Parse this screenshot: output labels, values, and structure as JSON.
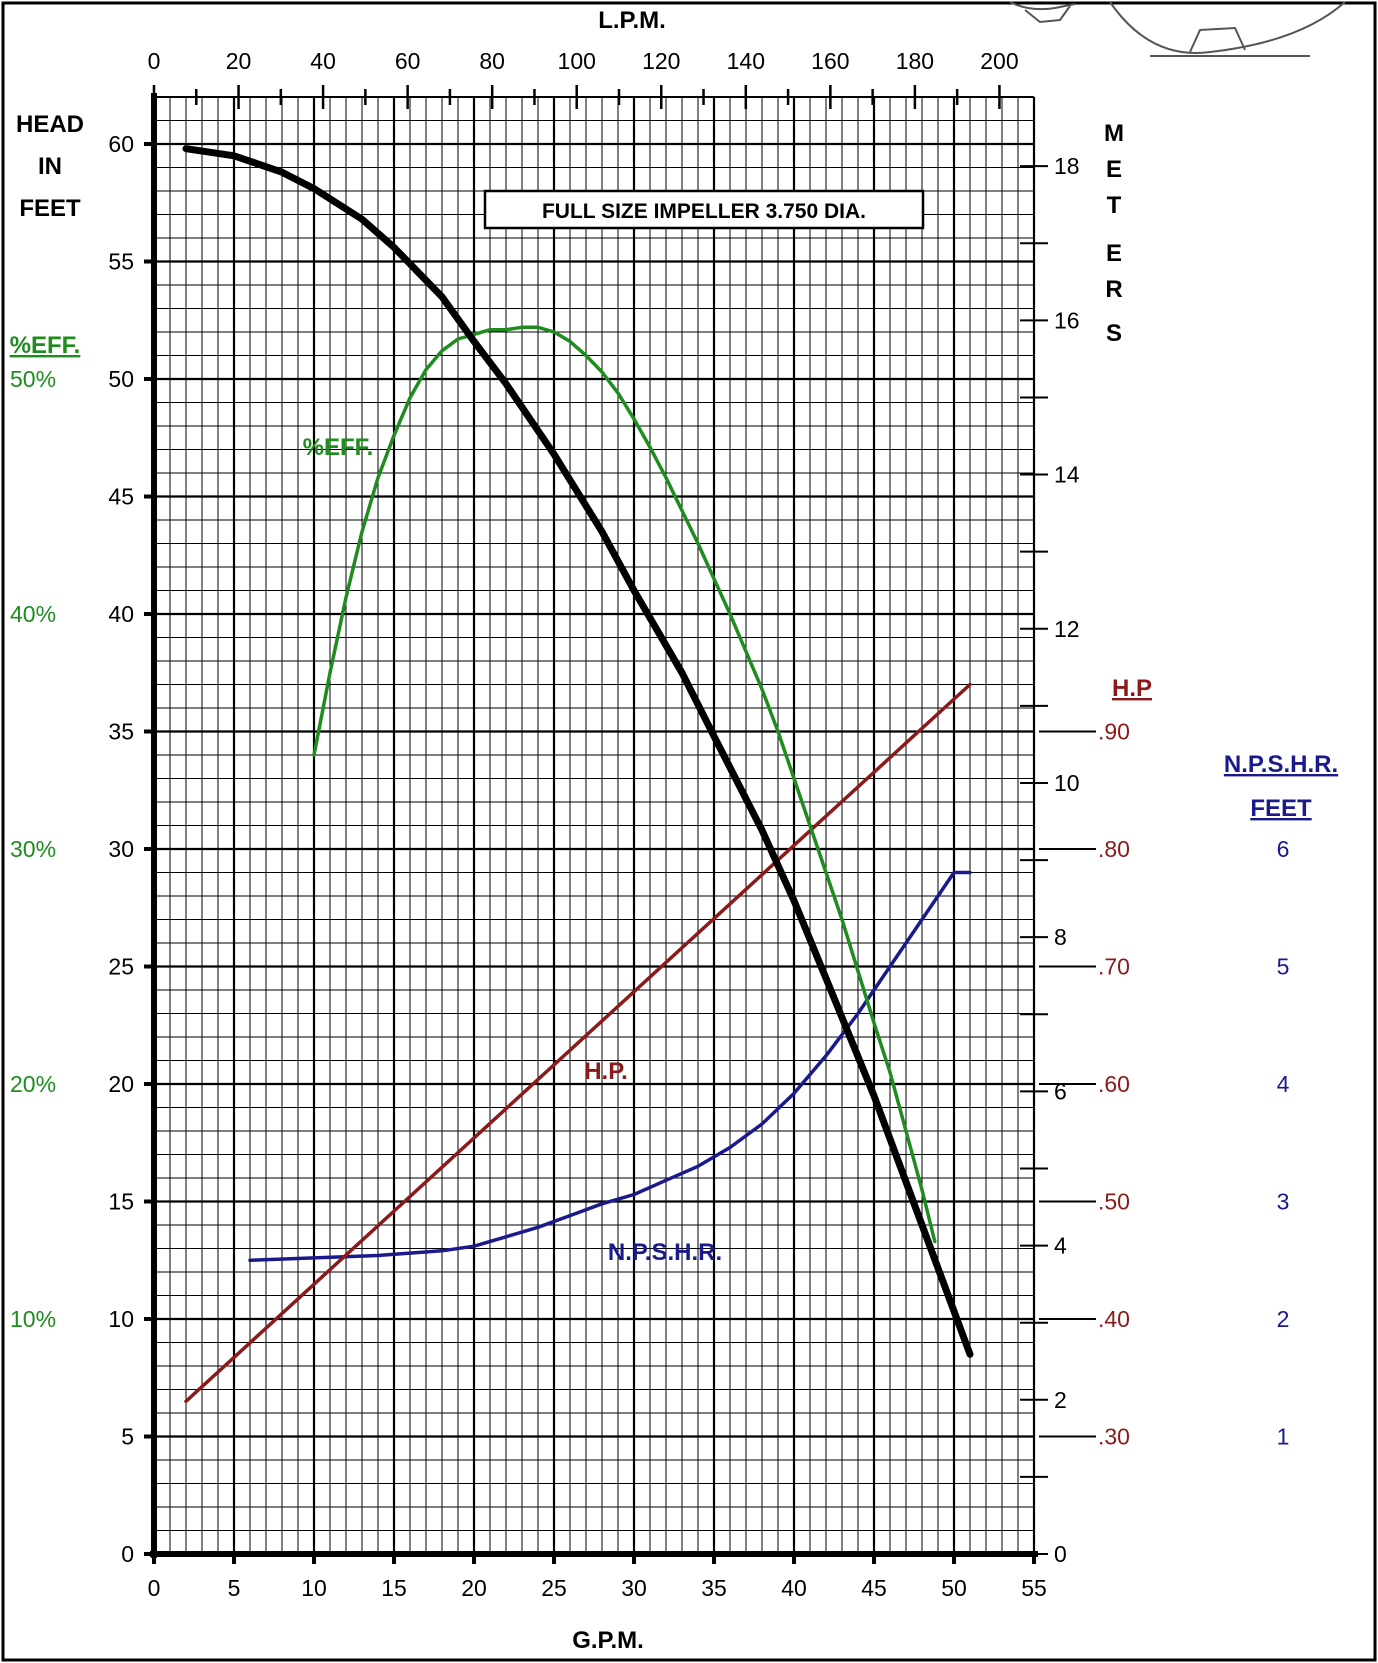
{
  "chart_data": {
    "type": "line",
    "annotation": "FULL SIZE IMPELLER 3.750 DIA.",
    "bottom_axis": {
      "label": "G.P.M.",
      "range": [
        0,
        55
      ],
      "ticks": [
        0,
        5,
        10,
        15,
        20,
        25,
        30,
        35,
        40,
        45,
        50,
        55
      ]
    },
    "top_axis": {
      "label": "L.P.M.",
      "ticks": [
        "0",
        "20",
        "40",
        "60",
        "80",
        "100",
        "120",
        "140",
        "160",
        "180",
        "200"
      ]
    },
    "left_axis": {
      "label_lines": [
        "HEAD",
        "IN",
        "FEET"
      ],
      "range": [
        0,
        62
      ],
      "ticks": [
        0,
        5,
        10,
        15,
        20,
        25,
        30,
        35,
        40,
        45,
        50,
        55,
        60
      ]
    },
    "eff_axis": {
      "title": "%EFF.",
      "ticks": [
        {
          "label": "10%",
          "head": 10
        },
        {
          "label": "20%",
          "head": 20
        },
        {
          "label": "30%",
          "head": 30
        },
        {
          "label": "40%",
          "head": 40
        },
        {
          "label": "50%",
          "head": 50
        }
      ]
    },
    "meters_axis": {
      "title_letters": [
        "M",
        "E",
        "T",
        "E",
        "R",
        "S"
      ],
      "ticks": [
        "0",
        "2",
        "4",
        "6",
        "8",
        "10",
        "12",
        "14",
        "16",
        "18"
      ]
    },
    "hp_axis": {
      "title": "H.P",
      "ticks": [
        {
          "label": ".30",
          "head": 5
        },
        {
          "label": ".40",
          "head": 10
        },
        {
          "label": ".50",
          "head": 15
        },
        {
          "label": ".60",
          "head": 20
        },
        {
          "label": ".70",
          "head": 25
        },
        {
          "label": ".80",
          "head": 30
        },
        {
          "label": ".90",
          "head": 35
        }
      ]
    },
    "npshr_axis": {
      "title_lines": [
        "N.P.S.H.R.",
        "FEET"
      ],
      "ticks": [
        {
          "label": "1",
          "head": 5
        },
        {
          "label": "2",
          "head": 10
        },
        {
          "label": "3",
          "head": 15
        },
        {
          "label": "4",
          "head": 20
        },
        {
          "label": "5",
          "head": 25
        },
        {
          "label": "6",
          "head": 30
        }
      ]
    },
    "series": [
      {
        "key": "head",
        "color": "#000000",
        "x": [
          2,
          5,
          8,
          10,
          13,
          15,
          18,
          20,
          22,
          25,
          28,
          30,
          33,
          35,
          38,
          40,
          42,
          45,
          48,
          51
        ],
        "y": [
          59.8,
          59.5,
          58.8,
          58.1,
          56.8,
          55.6,
          53.5,
          51.6,
          49.8,
          46.8,
          43.5,
          41.0,
          37.5,
          34.8,
          30.8,
          27.8,
          24.5,
          19.5,
          14.0,
          8.5
        ]
      },
      {
        "key": "efficiency",
        "name": "%EFF.",
        "color": "#1e8c1e",
        "x": [
          10,
          11,
          12,
          13,
          14,
          15,
          16,
          17,
          18,
          19,
          20,
          21,
          22,
          23,
          24,
          25,
          26,
          27,
          28,
          29,
          30,
          31,
          32,
          33,
          34,
          35,
          36,
          37,
          38,
          39,
          40,
          41,
          42,
          43,
          44,
          45,
          46,
          47,
          48,
          48.8
        ],
        "y": [
          34,
          37.5,
          40.7,
          43.5,
          45.8,
          47.6,
          49.2,
          50.4,
          51.2,
          51.7,
          51.9,
          52.1,
          52.1,
          52.2,
          52.2,
          52.0,
          51.6,
          51.0,
          50.3,
          49.4,
          48.3,
          47.1,
          45.8,
          44.4,
          43.0,
          41.5,
          40.0,
          38.4,
          36.8,
          35.0,
          33.0,
          31.0,
          29.0,
          27.0,
          24.8,
          22.6,
          20.5,
          18.0,
          15.5,
          13.3
        ],
        "label": "%EFF."
      },
      {
        "key": "hp",
        "name": "H.P.",
        "color": "#8b1a1a",
        "x": [
          2,
          51
        ],
        "y": [
          6.5,
          37
        ],
        "label": "H.P."
      },
      {
        "key": "npshr",
        "name": "N.P.S.H.R.",
        "color": "#1a1a8c",
        "x": [
          6,
          10,
          14,
          18,
          20,
          22,
          24,
          26,
          28,
          30,
          32,
          34,
          36,
          38,
          40,
          42,
          44,
          46,
          48,
          50,
          51
        ],
        "y": [
          12.5,
          12.6,
          12.7,
          12.9,
          13.1,
          13.5,
          13.9,
          14.4,
          14.9,
          15.3,
          15.9,
          16.5,
          17.3,
          18.3,
          19.6,
          21.2,
          23.0,
          25.0,
          27.0,
          29.0,
          29.0
        ],
        "label": "N.P.S.H.R."
      }
    ],
    "colors": {
      "head": "#000000",
      "efficiency": "#1e8c1e",
      "hp": "#8b1a1a",
      "npshr": "#1a1a8c"
    }
  }
}
